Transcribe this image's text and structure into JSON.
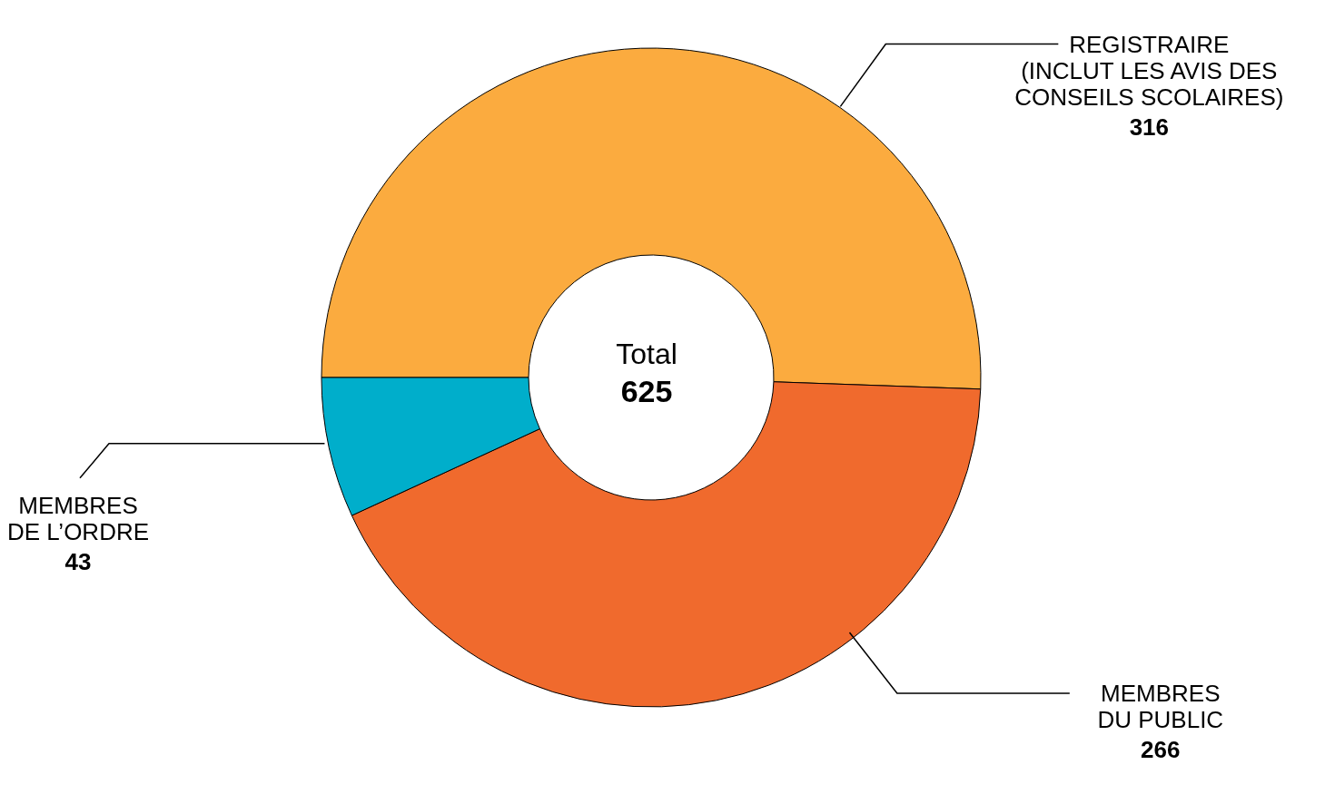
{
  "chart_data": {
    "type": "donut",
    "title": "Total",
    "annotations": [
      "625"
    ],
    "categories": [
      "REGISTRAIRE\n(INCLUT LES AVIS DES\nCONSEILS SCOLAIRES)",
      "MEMBRES\nDU PUBLIC",
      "MEMBRES\nDE L’ORDRE"
    ],
    "values": [
      316,
      266,
      43
    ],
    "colors": [
      "#fbab3f",
      "#f06a2d",
      "#00aecb"
    ],
    "data_labels": true,
    "legend": false
  }
}
